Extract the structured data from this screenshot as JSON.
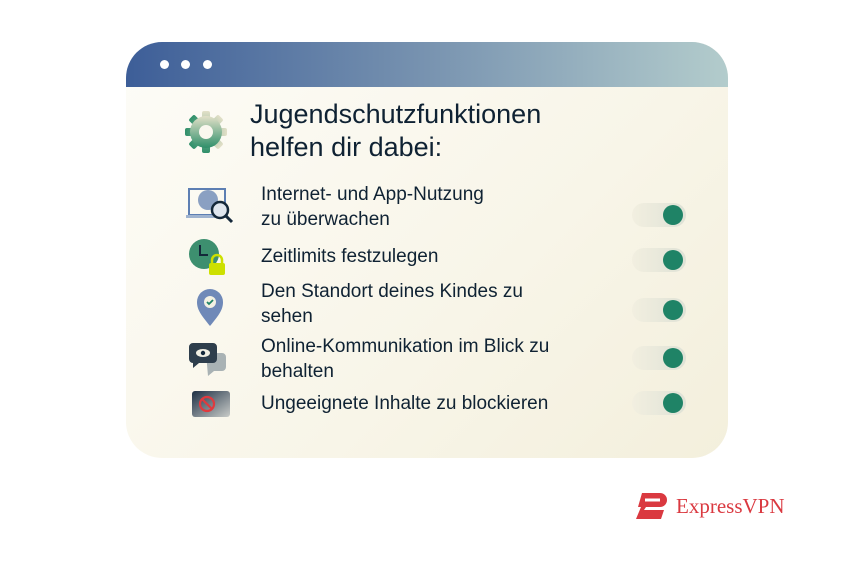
{
  "window": {
    "dots": 3,
    "header_gradient": [
      "#3d5e98",
      "#b3cccc"
    ]
  },
  "title": {
    "line1": "Jugendschutzfunktionen",
    "line2": "helfen dir dabei:",
    "icon": "gear-icon"
  },
  "items": [
    {
      "line1": "Internet- und App-Nutzung",
      "line2": "zu überwachen",
      "icon": "monitor-search-icon",
      "enabled": true
    },
    {
      "line1": "Zeitlimits festzulegen",
      "line2": "",
      "icon": "clock-lock-icon",
      "enabled": true
    },
    {
      "line1": "Den Standort deines Kindes zu",
      "line2": "sehen",
      "icon": "location-pin-icon",
      "enabled": true
    },
    {
      "line1": "Online-Kommunikation im Blick zu",
      "line2": "behalten",
      "icon": "chat-eye-icon",
      "enabled": true
    },
    {
      "line1": "Ungeeignete Inhalte zu blockieren",
      "line2": "",
      "icon": "blocked-content-icon",
      "enabled": true
    }
  ],
  "toggle_color": "#1f8366",
  "brand": {
    "name": "ExpressVPN",
    "color": "#da3940"
  }
}
